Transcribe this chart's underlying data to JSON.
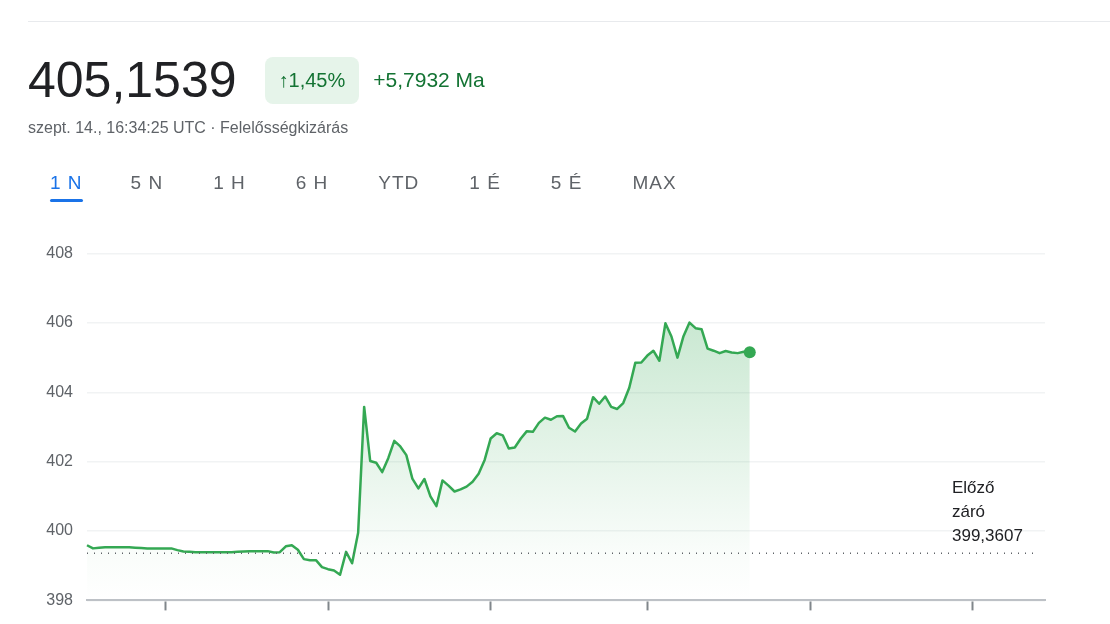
{
  "chart_data": {
    "type": "area",
    "title": "405,1539",
    "subtitle": "szept. 14., 16:34:25 UTC · Felelősségkizárás",
    "annotations": [
      "↑1,45%",
      "+5,7932 Ma",
      "1 N",
      "5 N",
      "1 H",
      "6 H",
      "YTD",
      "1 É",
      "5 É",
      "MAX"
    ],
    "categories": [
      null,
      null,
      null,
      null,
      null,
      null,
      null,
      null,
      null,
      null,
      null,
      null,
      null,
      null,
      null,
      null,
      null,
      null,
      null,
      null,
      null,
      null,
      null,
      null,
      null,
      null,
      null,
      null,
      null,
      null,
      null,
      null,
      null,
      null,
      null,
      null,
      null,
      null,
      null,
      null,
      null,
      null,
      null,
      null,
      null,
      null,
      null,
      null,
      null,
      null,
      null,
      null,
      null,
      null,
      null,
      null,
      null,
      null,
      null,
      null,
      null,
      null,
      null,
      null,
      null,
      null,
      null,
      null,
      null,
      null,
      null,
      null,
      null,
      null,
      null,
      null,
      null,
      null,
      null,
      null,
      null,
      null,
      null,
      null,
      null,
      null,
      null,
      null,
      null,
      null,
      null,
      null,
      null,
      null,
      null,
      null,
      null,
      null,
      null,
      null,
      null,
      null,
      null,
      null,
      null,
      null,
      null,
      null,
      null,
      null,
      null,
      null,
      null,
      null,
      null,
      null,
      null,
      null,
      null,
      null,
      null,
      null,
      null,
      null,
      null,
      null,
      null,
      null,
      null,
      null,
      null,
      null,
      null,
      null,
      null,
      null,
      null,
      null,
      null,
      null,
      null,
      null,
      null,
      null,
      null,
      null,
      null,
      null,
      null,
      null,
      null,
      null,
      null,
      null,
      null,
      null,
      null,
      null,
      null,
      null
    ],
    "series": [
      {
        "color": "#34a853",
        "values": [
          399.59,
          399.5,
          399.52,
          399.53,
          399.53,
          399.53,
          399.53,
          399.53,
          399.52,
          399.51,
          399.5,
          399.5,
          399.5,
          399.5,
          399.5,
          399.45,
          399.41,
          399.4,
          399.39,
          399.39,
          399.39,
          399.39,
          399.39,
          399.39,
          399.39,
          399.4,
          399.41,
          399.42,
          399.42,
          399.42,
          399.42,
          399.38,
          399.39,
          399.56,
          399.59,
          399.46,
          399.19,
          399.16,
          399.16,
          398.96,
          398.9,
          398.86,
          398.74,
          399.4,
          399.07,
          399.95,
          403.58,
          402.02,
          401.97,
          401.7,
          402.1,
          402.6,
          402.44,
          402.19,
          401.51,
          401.23,
          401.5,
          401.0,
          400.72,
          401.46,
          401.31,
          401.14,
          401.2,
          401.28,
          401.42,
          401.65,
          402.05,
          402.67,
          402.82,
          402.76,
          402.38,
          402.41,
          402.67,
          402.88,
          402.86,
          403.12,
          403.27,
          403.21,
          403.31,
          403.32,
          402.98,
          402.87,
          403.1,
          403.24,
          403.86,
          403.67,
          403.88,
          403.58,
          403.52,
          403.69,
          404.13,
          404.85,
          404.86,
          405.06,
          405.2,
          404.91,
          405.99,
          405.61,
          405.0,
          405.62,
          406.01,
          405.85,
          405.82,
          405.26,
          405.2,
          405.13,
          405.19,
          405.15,
          405.13,
          405.17,
          405.1539,
          null,
          null,
          null,
          null,
          null,
          null,
          null,
          null,
          null,
          null,
          null,
          null,
          null,
          null,
          null,
          null,
          null,
          null,
          null,
          null,
          null,
          null,
          null,
          null,
          null,
          null,
          null,
          null,
          null,
          null,
          null,
          null,
          null,
          null,
          null,
          null,
          null,
          null,
          null,
          null,
          null,
          null,
          null,
          null,
          null,
          null,
          null,
          null,
          null
        ]
      }
    ],
    "ylim": [
      398,
      408
    ],
    "yticks": [
      398,
      400,
      402,
      404,
      406,
      408
    ],
    "tick_labels": "y",
    "grid": "y",
    "ref_lines": [
      {
        "axis": "y",
        "value": 399.3607,
        "label": "Előző záró 399,3607",
        "color": "#5f6368",
        "line_style": "dotted"
      }
    ]
  }
}
